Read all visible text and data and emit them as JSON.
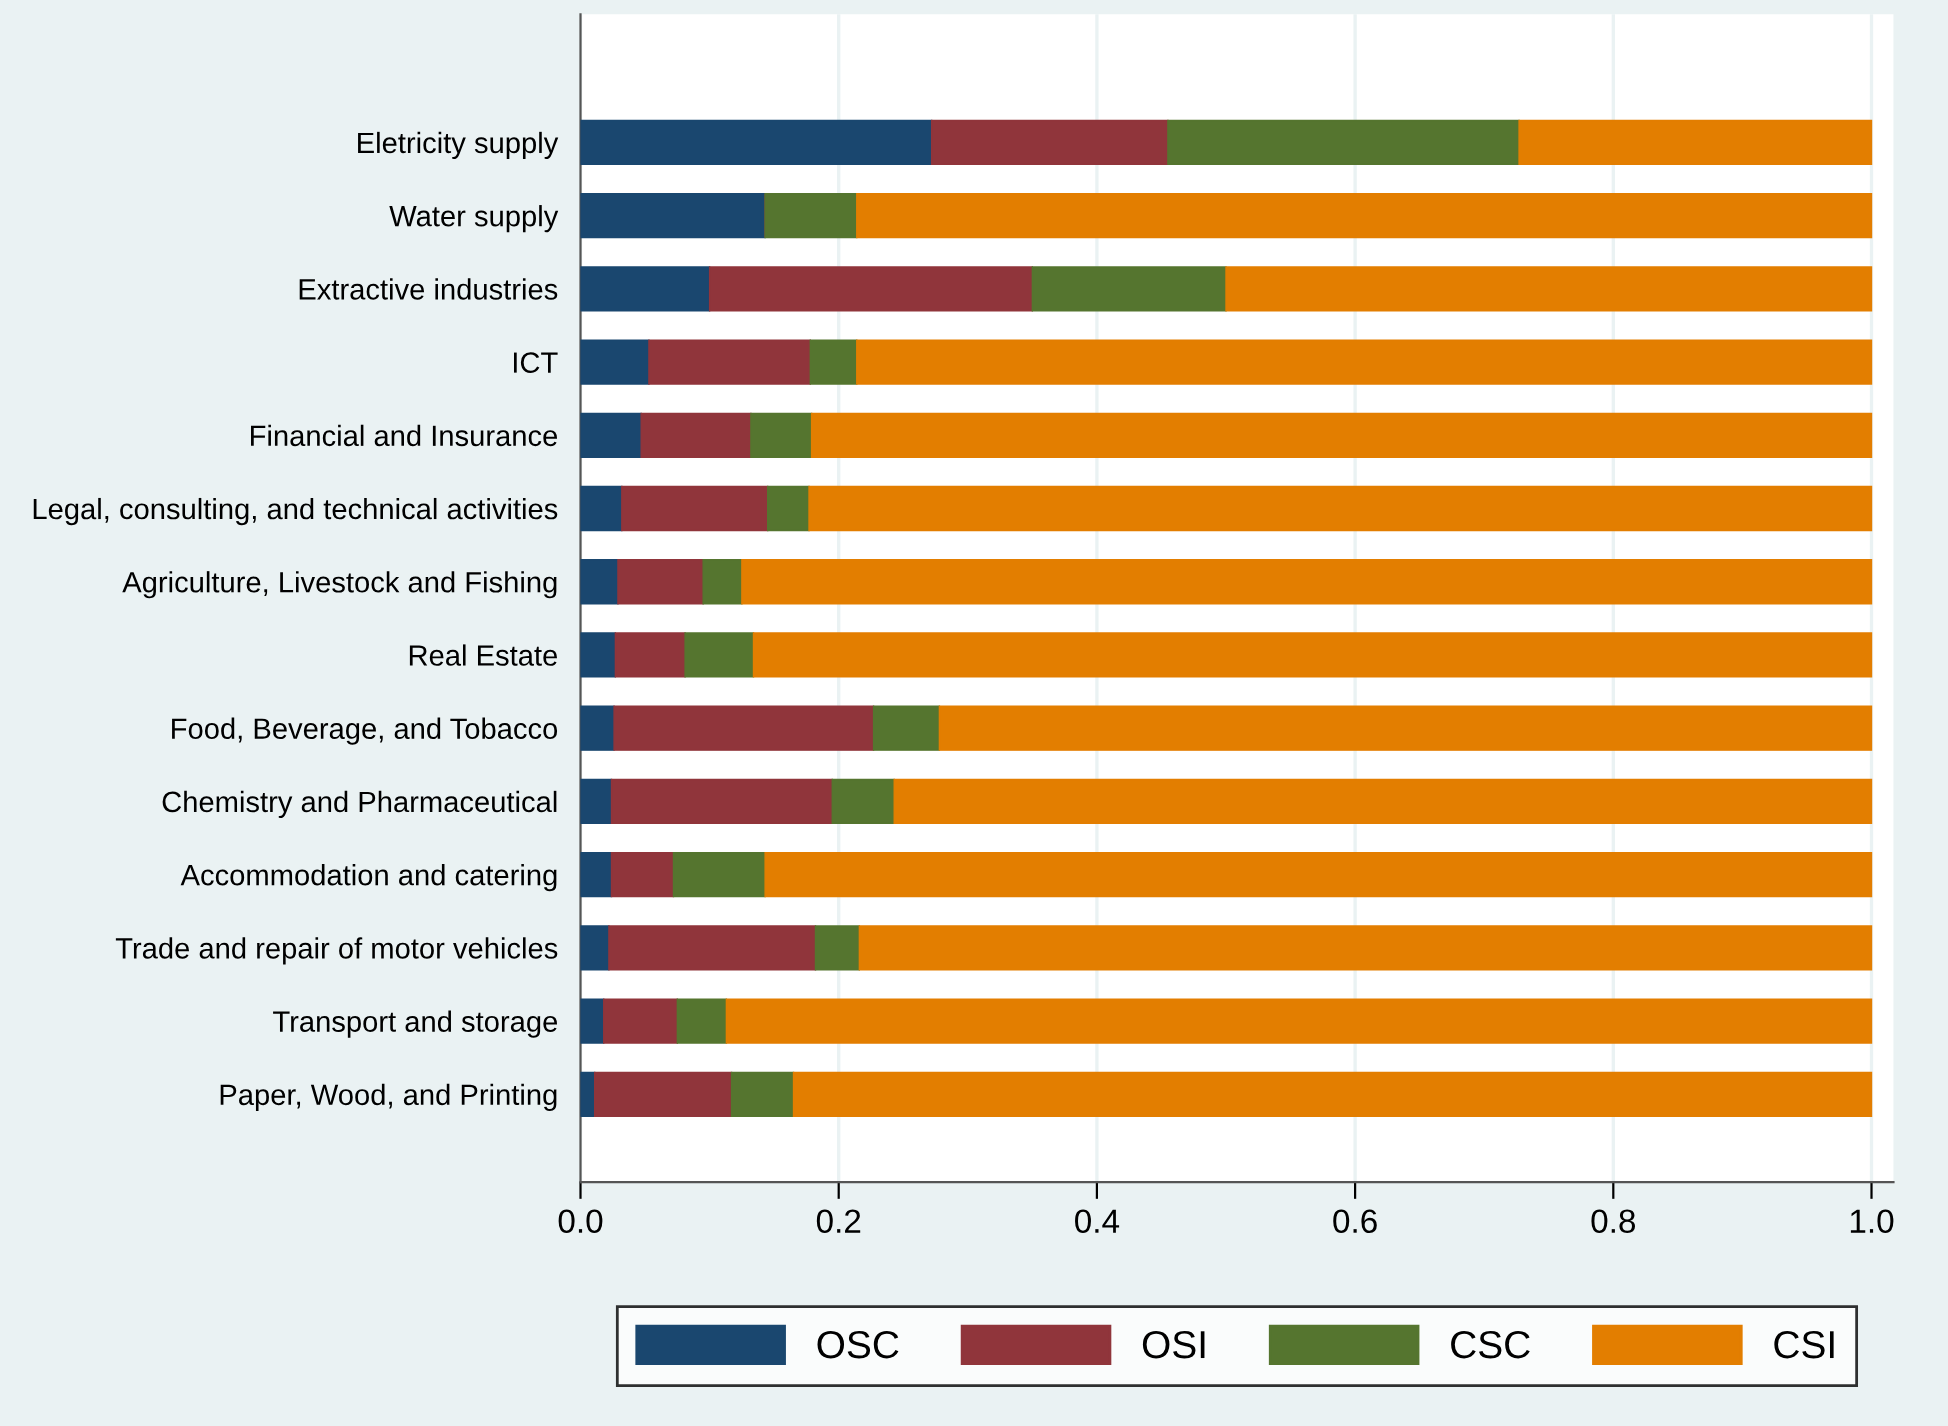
{
  "chart_data": {
    "type": "bar",
    "orientation": "horizontal",
    "stacked": true,
    "categories": [
      "Eletricity supply",
      "Water supply",
      "Extractive industries",
      "ICT",
      "Financial and Insurance",
      "Legal, consulting, and technical activities",
      "Agriculture, Livestock and Fishing",
      "Real Estate",
      "Food, Beverage, and Tobacco",
      "Chemistry and Pharmaceutical",
      "Accommodation and catering",
      "Trade and repair of motor vehicles",
      "Transport and storage",
      "Paper, Wood, and Printing"
    ],
    "series": [
      {
        "name": "OSC",
        "color": "#1a476f",
        "values": [
          0.272,
          0.143,
          0.1,
          0.053,
          0.047,
          0.032,
          0.029,
          0.027,
          0.026,
          0.024,
          0.024,
          0.022,
          0.018,
          0.011
        ]
      },
      {
        "name": "OSI",
        "color": "#90353b",
        "values": [
          0.183,
          0,
          0.25,
          0.125,
          0.085,
          0.113,
          0.066,
          0.054,
          0.201,
          0.171,
          0.048,
          0.16,
          0.057,
          0.106
        ]
      },
      {
        "name": "CSC",
        "color": "#55752f",
        "values": [
          0.272,
          0.071,
          0.15,
          0.036,
          0.047,
          0.032,
          0.03,
          0.053,
          0.051,
          0.048,
          0.071,
          0.034,
          0.038,
          0.048
        ]
      },
      {
        "name": "CSI",
        "color": "#e37e00",
        "values": [
          0.273,
          0.786,
          0.5,
          0.786,
          0.821,
          0.823,
          0.875,
          0.866,
          0.722,
          0.757,
          0.857,
          0.784,
          0.887,
          0.835
        ]
      }
    ],
    "xlim": [
      0,
      1.017
    ],
    "xticks": [
      {
        "value": 0,
        "label": "0.0"
      },
      {
        "value": 0.2,
        "label": "0.2"
      },
      {
        "value": 0.4,
        "label": "0.4"
      },
      {
        "value": 0.6,
        "label": "0.6"
      },
      {
        "value": 0.8,
        "label": "0.8"
      },
      {
        "value": 1,
        "label": "1.0"
      }
    ],
    "grid": "x",
    "legend": "bottom"
  }
}
